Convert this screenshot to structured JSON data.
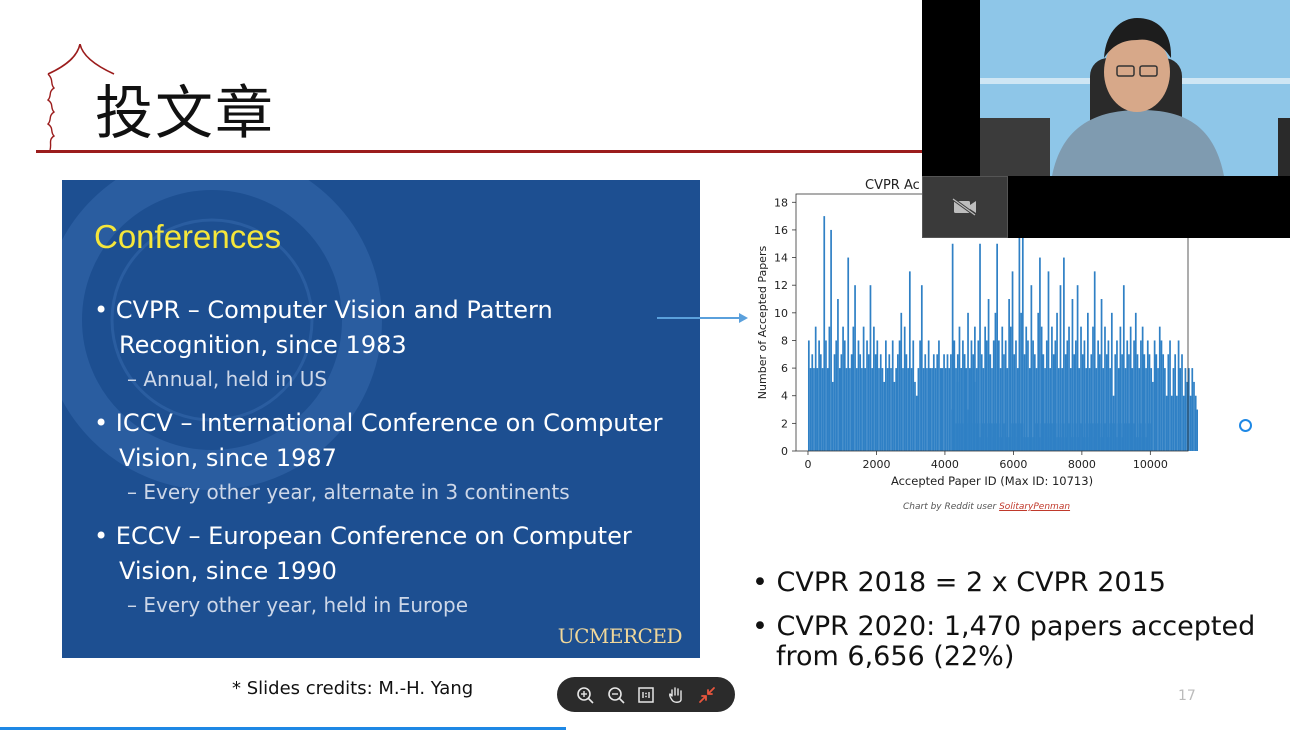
{
  "slide": {
    "title": "投文章",
    "credit": "* Slides credits: M.-H. Yang",
    "page_number": "17"
  },
  "panel": {
    "heading": "Conferences",
    "items": [
      {
        "line1": "CVPR – Computer Vision and Pattern",
        "line2": "Recognition, since 1983",
        "sub": "– Annual, held in US"
      },
      {
        "line1": "ICCV – International Conference on Computer",
        "line2": "Vision, since 1987",
        "sub": "– Every other year, alternate in 3 continents"
      },
      {
        "line1": "ECCV – European Conference on Computer",
        "line2": "Vision, since 1990",
        "sub": "– Every other year, held in Europe"
      }
    ],
    "logo_text": "UCMERCED"
  },
  "right_bullets": [
    {
      "text": "CVPR 2018 = 2 x CVPR 2015"
    },
    {
      "line1": "CVPR 2020: 1,470 papers accepted",
      "line2": "from   6,656 (22%)"
    }
  ],
  "chart_credit": {
    "prefix": "Chart by Reddit user ",
    "user": "SolitaryPenman"
  },
  "chart_data": {
    "type": "bar",
    "title": "CVPR Ac",
    "xlabel": "Accepted Paper ID (Max ID: 10713)",
    "ylabel": "Number of Accepted Papers",
    "xlim": [
      -350,
      11100
    ],
    "ylim": [
      0,
      18.6
    ],
    "xticks": [
      0,
      2000,
      4000,
      6000,
      8000,
      10000
    ],
    "yticks": [
      0,
      2,
      4,
      6,
      8,
      10,
      12,
      14,
      16,
      18
    ],
    "bar_color": "#2f80c5",
    "bin_width": 50,
    "segments": [
      {
        "start": 0,
        "values": [
          8,
          6,
          7,
          6,
          9,
          6,
          8,
          7,
          6,
          17,
          8,
          6,
          9,
          16,
          5,
          7,
          8,
          11,
          6,
          7,
          9,
          8,
          6,
          14,
          6,
          7,
          9,
          12,
          6,
          8,
          7,
          6,
          9,
          6,
          8,
          7,
          12,
          6,
          9,
          7,
          8,
          6,
          7,
          6,
          5,
          8,
          6,
          7,
          6,
          8,
          5,
          6,
          7,
          8,
          10,
          6,
          9,
          7,
          6,
          13,
          6,
          8,
          5,
          4,
          6,
          8,
          12,
          6,
          7,
          6,
          8,
          6,
          6,
          7,
          6,
          7,
          8,
          6,
          6,
          7,
          6,
          7,
          6,
          7,
          3,
          6,
          2,
          5,
          2,
          6,
          2,
          7,
          2,
          3,
          2,
          6,
          2,
          5,
          2,
          2,
          1,
          2,
          2,
          2,
          1,
          2,
          2,
          2,
          1,
          2,
          2,
          2,
          1,
          2,
          2,
          2,
          1,
          1,
          1,
          2,
          2,
          2,
          1,
          2,
          2,
          2,
          1,
          1,
          1,
          1,
          1,
          1,
          1,
          2,
          2,
          1,
          2,
          2,
          2,
          1,
          2,
          1,
          2,
          2,
          2,
          1,
          2,
          1,
          2,
          2,
          1,
          2,
          2,
          2,
          1,
          2,
          2,
          1,
          2,
          2,
          2,
          1,
          2,
          1,
          2,
          2,
          2,
          1,
          2,
          2,
          2,
          1,
          2,
          2,
          2,
          1,
          2,
          2,
          2,
          2,
          1,
          2,
          2,
          1,
          2,
          2,
          1,
          2,
          2,
          2,
          2,
          1,
          1,
          2,
          2,
          1,
          2,
          1,
          2,
          2
        ]
      },
      {
        "start": 4200,
        "values": [
          15,
          8,
          6,
          7,
          9,
          6,
          8,
          7,
          6,
          10,
          6,
          8,
          7,
          9,
          6,
          8,
          15,
          7,
          6,
          9,
          8,
          11,
          7,
          6,
          8,
          10,
          15,
          8,
          6,
          9,
          7,
          8,
          6,
          11,
          9,
          13,
          7,
          8,
          6,
          18,
          10,
          16,
          7,
          9,
          8,
          6,
          12,
          8,
          7,
          6,
          10,
          14,
          9,
          7,
          6,
          8,
          13,
          6,
          9,
          7,
          8,
          10,
          6,
          12,
          6,
          14,
          7,
          8,
          9,
          6,
          11,
          7,
          8,
          12,
          6,
          9,
          7,
          8,
          6,
          10,
          6,
          7,
          9,
          13,
          6,
          8,
          7,
          11,
          6,
          9,
          7,
          8,
          6,
          10,
          4,
          7,
          8,
          6,
          9,
          7,
          12,
          6,
          8,
          7,
          9,
          6,
          8,
          10,
          7,
          6,
          8,
          9,
          7,
          6,
          8,
          7,
          6,
          5,
          8,
          7,
          6,
          9,
          8,
          7,
          6,
          4,
          7,
          8,
          4,
          6,
          7,
          4,
          8,
          6,
          7,
          4,
          6,
          5,
          6,
          4,
          6,
          5,
          4,
          3,
          2,
          3,
          3,
          2
        ]
      }
    ]
  }
}
